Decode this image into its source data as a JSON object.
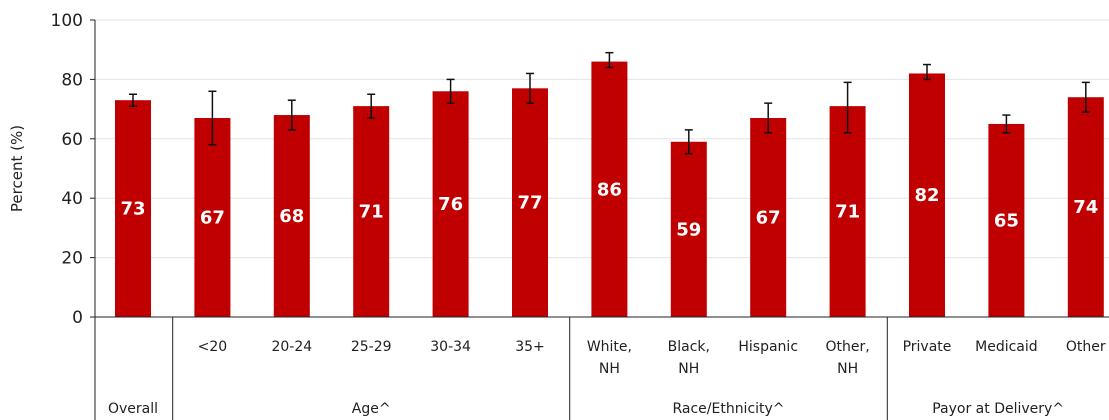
{
  "chart_data": {
    "type": "bar",
    "ylabel": "Percent (%)",
    "ylim": [
      0,
      100
    ],
    "yticks": [
      0,
      20,
      40,
      60,
      80,
      100
    ],
    "grid": true,
    "bar_color": "#c00000",
    "categories": [
      {
        "label": [
          "Overall"
        ],
        "value": 73,
        "err_low": 71,
        "err_high": 75
      },
      {
        "label": [
          "<20"
        ],
        "value": 67,
        "err_low": 58,
        "err_high": 76
      },
      {
        "label": [
          "20-24"
        ],
        "value": 68,
        "err_low": 63,
        "err_high": 73
      },
      {
        "label": [
          "25-29"
        ],
        "value": 71,
        "err_low": 67,
        "err_high": 75
      },
      {
        "label": [
          "30-34"
        ],
        "value": 76,
        "err_low": 72,
        "err_high": 80
      },
      {
        "label": [
          "35+"
        ],
        "value": 77,
        "err_low": 72,
        "err_high": 82
      },
      {
        "label": [
          "White,",
          "NH"
        ],
        "value": 86,
        "err_low": 84,
        "err_high": 89
      },
      {
        "label": [
          "Black,",
          "NH"
        ],
        "value": 59,
        "err_low": 55,
        "err_high": 63
      },
      {
        "label": [
          "Hispanic"
        ],
        "value": 67,
        "err_low": 62,
        "err_high": 72
      },
      {
        "label": [
          "Other,",
          "NH"
        ],
        "value": 71,
        "err_low": 62,
        "err_high": 79
      },
      {
        "label": [
          "Private"
        ],
        "value": 82,
        "err_low": 80,
        "err_high": 85
      },
      {
        "label": [
          "Medicaid"
        ],
        "value": 65,
        "err_low": 62,
        "err_high": 68
      },
      {
        "label": [
          "Other"
        ],
        "value": 74,
        "err_low": 69,
        "err_high": 79
      }
    ],
    "groups": [
      {
        "name": "Overall",
        "count": 1
      },
      {
        "name": "Age^",
        "count": 5
      },
      {
        "name": "Race/Ethnicity^",
        "count": 4
      },
      {
        "name": "Payor at Delivery^",
        "count": 3
      }
    ]
  }
}
